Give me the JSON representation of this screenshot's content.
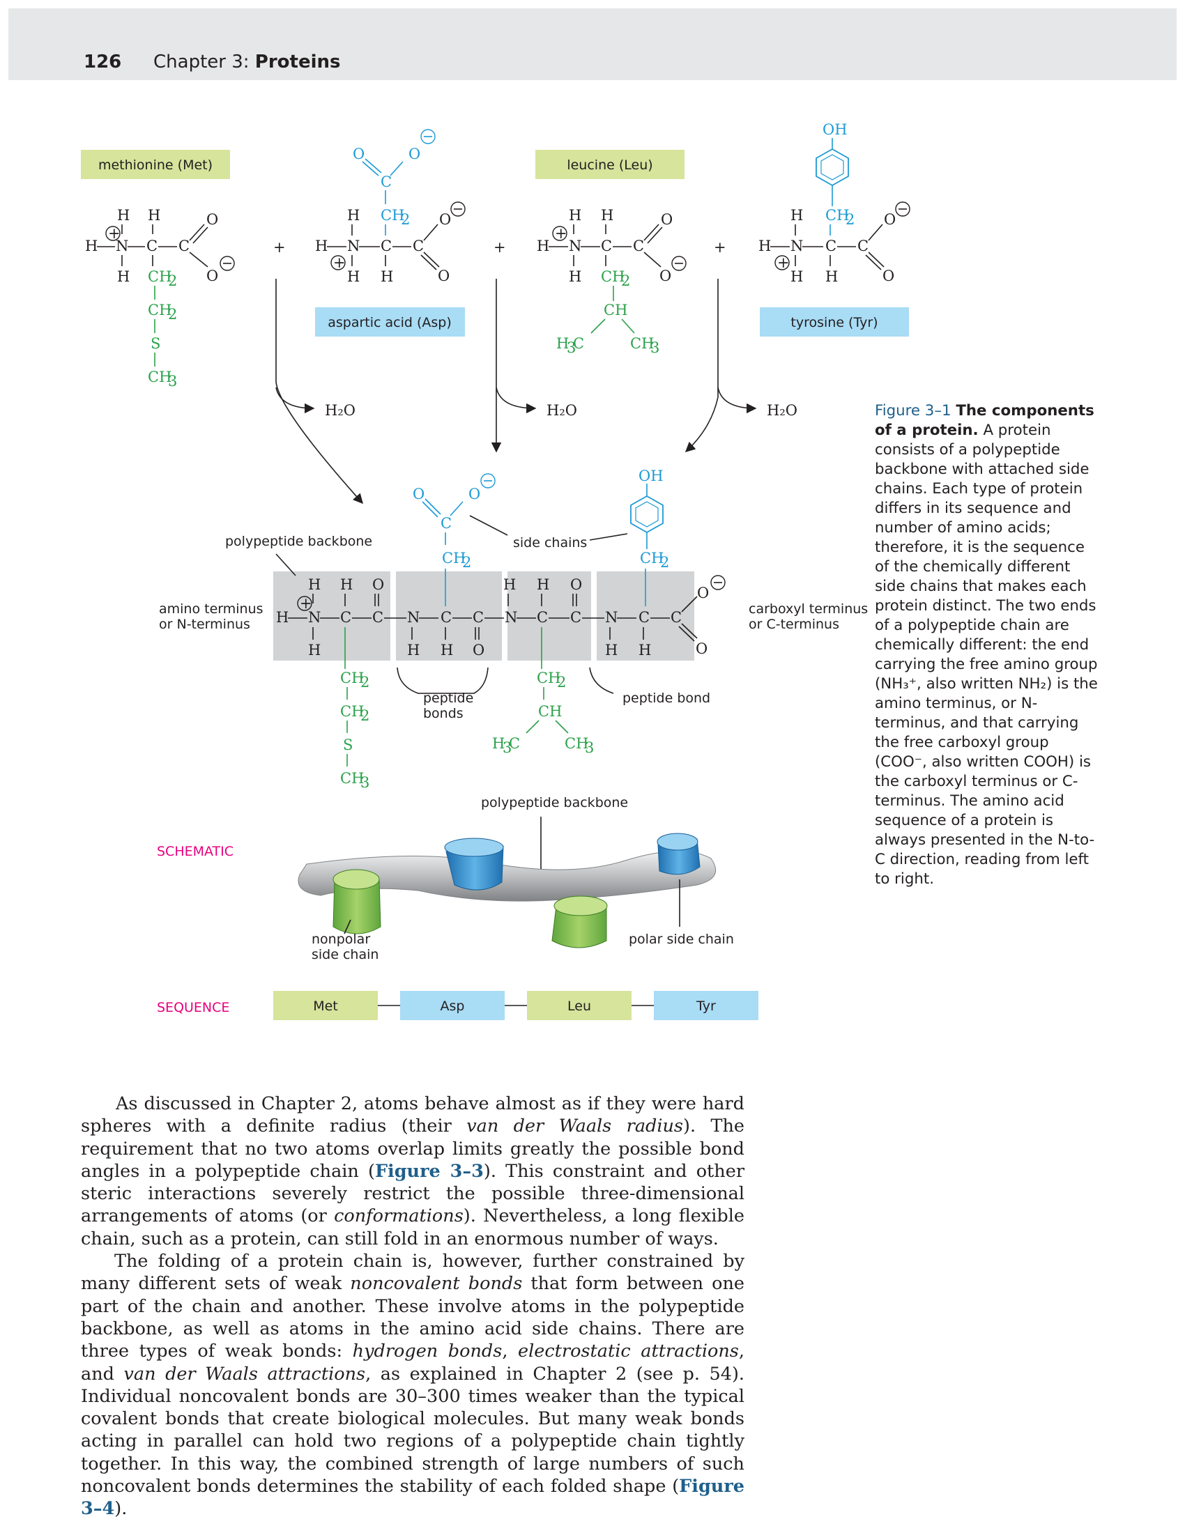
{
  "header": {
    "page_number": "126",
    "chapter_prefix": "Chapter 3: ",
    "chapter_title": "Proteins"
  },
  "amino_acids": {
    "met": "methionine (Met)",
    "asp": "aspartic acid (Asp)",
    "leu": "leucine (Leu)",
    "tyr": "tyrosine (Tyr)"
  },
  "water": "H₂O",
  "labels": {
    "polypeptide_backbone": "polypeptide backbone",
    "side_chains": "side chains",
    "amino_terminus_1": "amino terminus",
    "amino_terminus_2": "or N-terminus",
    "carboxyl_terminus_1": "carboxyl terminus",
    "carboxyl_terminus_2": "or C-terminus",
    "peptide_bonds_1": "peptide",
    "peptide_bonds_2": "bonds",
    "peptide_bond": "peptide bond",
    "polypeptide_backbone_2": "polypeptide backbone",
    "schematic": "SCHEMATIC",
    "nonpolar_1": "nonpolar",
    "nonpolar_2": "side chain",
    "polar": "polar side chain",
    "sequence": "SEQUENCE"
  },
  "sequence": [
    "Met",
    "Asp",
    "Leu",
    "Tyr"
  ],
  "caption": {
    "number": "Figure 3–1",
    "title": "The components of a protein.",
    "text": "A protein consists of a polypeptide backbone with attached side chains. Each type of protein differs in its sequence and number of amino acids; therefore, it is the sequence of the chemically different side chains that makes each protein distinct. The two ends of a polypeptide chain are chemically different: the end carrying the free amino group (NH₃⁺, also written NH₂) is the amino terminus, or N-terminus, and that carrying the free carboxyl group (COO⁻, also written COOH) is the carboxyl terminus or C-terminus. The amino acid sequence of a protein is always presented in the N-to-C direction, reading from left to right."
  },
  "body": {
    "p1_a": "As discussed in Chapter 2, atoms behave almost as if they were hard spheres with a definite radius (their ",
    "p1_em1": "van der Waals radius",
    "p1_b": "). The requirement that no two atoms overlap limits greatly the possible bond angles in a polypeptide chain (",
    "p1_ref": "Figure 3–3",
    "p1_c": "). This constraint and other steric interactions severely restrict the possible three-dimensional arrangements of atoms (or ",
    "p1_em2": "conformations",
    "p1_d": "). Never­theless, a long flexible chain, such as a protein, can still fold in an enormous number of ways.",
    "p2_a": "The folding of a protein chain is, however, further constrained by many dif­ferent sets of weak ",
    "p2_em1": "noncovalent bonds",
    "p2_b": " that form between one part of the chain and another. These involve atoms in the polypeptide backbone, as well as atoms in the amino acid side chains. There are three types of weak bonds: ",
    "p2_em2": "hydrogen bonds",
    "p2_c": ", ",
    "p2_em3": "electrostatic attractions",
    "p2_d": ", and ",
    "p2_em4": "van der Waals attractions",
    "p2_e": ", as explained in Chapter 2 (see p. 54). Individual noncovalent bonds are 30–300 times weaker than the typical covalent bonds that create biological molecules. But many weak bonds acting in parallel can hold two regions of a polypeptide chain tightly together. In this way, the combined strength of large numbers of such noncova­lent bonds determines the stability of each folded shape (",
    "p2_ref": "Figure 3–4",
    "p2_f": ")."
  },
  "colors": {
    "green_box": "#d6e49c",
    "blue_box": "#a9dcf5",
    "gray_box": "#d1d3d4",
    "accent_blue": "#1f5f8b",
    "pink": "#e6007e",
    "green": "#2aa14a",
    "cyan": "#1b9ad6"
  }
}
